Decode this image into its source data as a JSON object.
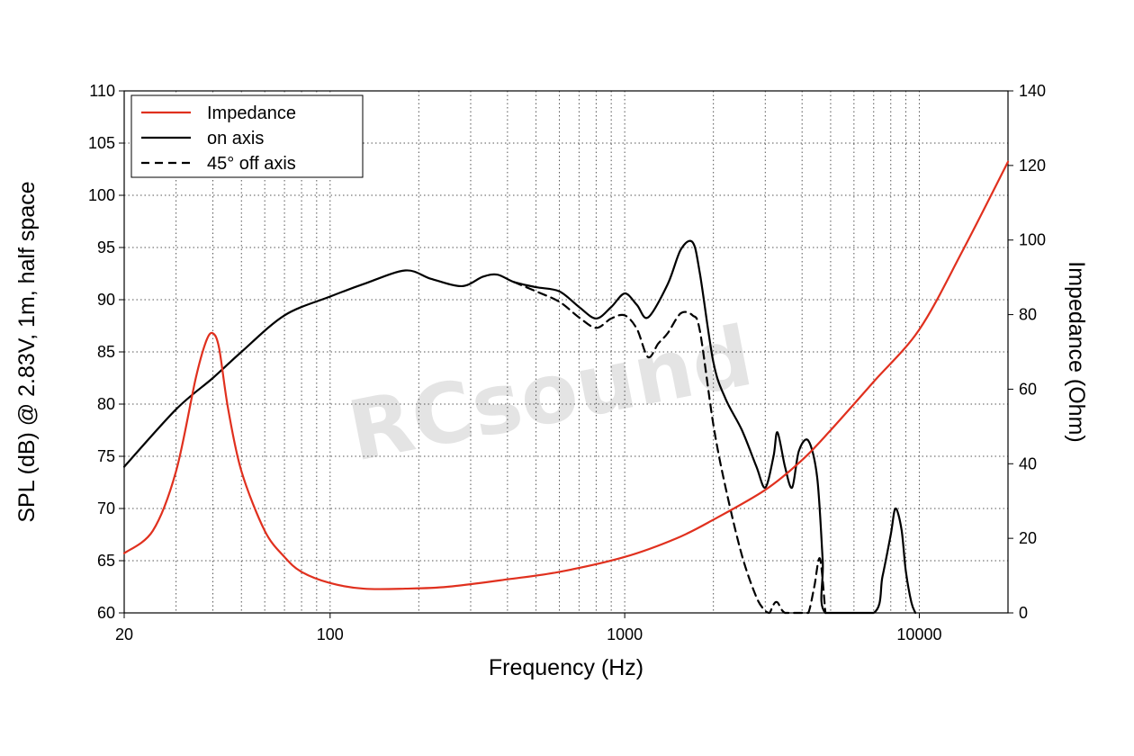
{
  "chart_data": {
    "type": "line",
    "xlabel": "Frequency (Hz)",
    "ylabel": "SPL (dB) @ 2.83V, 1m, half space",
    "y2label": "Impedance (Ohm)",
    "xscale": "log",
    "xlim": [
      20,
      20000
    ],
    "ylim": [
      60,
      110
    ],
    "y2lim": [
      0,
      140
    ],
    "grid": true,
    "legend_position": "top-left",
    "x_ticks": [
      20,
      100,
      1000,
      10000
    ],
    "x_tick_labels": [
      "20",
      "100",
      "1000",
      "10000"
    ],
    "y_ticks": [
      60,
      65,
      70,
      75,
      80,
      85,
      90,
      95,
      100,
      105,
      110
    ],
    "y_tick_labels": [
      "60",
      "65",
      "70",
      "75",
      "80",
      "85",
      "90",
      "95",
      "100",
      "105",
      "110"
    ],
    "y2_ticks": [
      0,
      20,
      40,
      60,
      80,
      100,
      120,
      140
    ],
    "y2_tick_labels": [
      "0",
      "20",
      "40",
      "60",
      "80",
      "100",
      "120",
      "140"
    ],
    "watermark": "RCsound",
    "series": [
      {
        "name": "Impedance",
        "axis": "right",
        "color": "#e0301e",
        "dash": "solid",
        "x": [
          20,
          25,
          30,
          35,
          38,
          40,
          42,
          45,
          50,
          60,
          70,
          80,
          100,
          130,
          180,
          250,
          400,
          600,
          1000,
          1500,
          2000,
          3000,
          4000,
          5000,
          7000,
          10000,
          14000,
          20000
        ],
        "y": [
          16,
          22,
          38,
          63,
          73,
          75,
          71,
          55,
          38,
          22,
          15,
          11,
          8,
          6.5,
          6.5,
          7,
          9,
          11,
          15,
          20,
          25,
          33,
          41,
          49,
          62,
          76,
          97,
          121
        ]
      },
      {
        "name": "on axis",
        "axis": "left",
        "color": "#000000",
        "dash": "solid",
        "x": [
          20,
          30,
          40,
          50,
          70,
          100,
          130,
          180,
          220,
          280,
          330,
          370,
          420,
          500,
          600,
          700,
          800,
          900,
          1000,
          1100,
          1200,
          1400,
          1550,
          1700,
          1800,
          2000,
          2200,
          2500,
          2800,
          3000,
          3200,
          3300,
          3500,
          3700,
          3900,
          4200,
          4500,
          4700,
          4800,
          7000,
          7500,
          8000,
          8300,
          8700,
          9000,
          9400,
          9700
        ],
        "y": [
          74,
          79.5,
          82.5,
          85,
          88.5,
          90.3,
          91.5,
          92.8,
          92,
          91.3,
          92.2,
          92.4,
          91.7,
          91.2,
          90.8,
          89.3,
          88.2,
          89.3,
          90.6,
          89.5,
          88.3,
          91.5,
          94.8,
          95.5,
          92.5,
          84,
          80.5,
          77.5,
          74,
          72,
          75,
          77.3,
          74,
          72,
          75.5,
          76.5,
          73,
          65,
          60,
          60,
          63.5,
          67.5,
          70,
          68,
          64,
          61,
          60
        ]
      },
      {
        "name": "45° off axis",
        "axis": "left",
        "color": "#000000",
        "dash": "dashed",
        "x": [
          420,
          500,
          600,
          700,
          800,
          900,
          1000,
          1100,
          1200,
          1300,
          1400,
          1550,
          1700,
          1800,
          2000,
          2200,
          2500,
          2800,
          3000,
          3100,
          3200,
          3300,
          3500,
          4000,
          4200,
          4400,
          4600,
          4800
        ],
        "y": [
          91.7,
          90.8,
          89.8,
          88.3,
          87.3,
          88.2,
          88.5,
          87.2,
          84.5,
          85.8,
          86.8,
          88.7,
          88.5,
          87,
          78,
          72,
          65.5,
          61.5,
          60.2,
          60,
          60.8,
          61,
          60,
          60,
          60,
          62.5,
          65.2,
          60
        ]
      }
    ]
  }
}
